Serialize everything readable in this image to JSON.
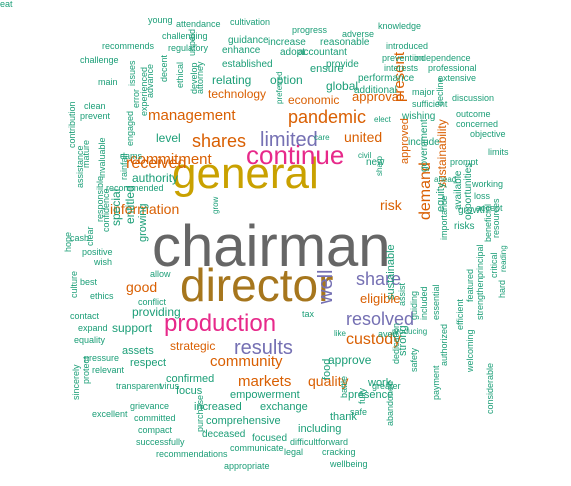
{
  "palette": {
    "gray": "#666666",
    "gold": "#c9a100",
    "bronze": "#a6761d",
    "magenta": "#e7298a",
    "purple": "#7570b3",
    "orange": "#d95f02",
    "teal": "#1b9e77"
  },
  "words": [
    {
      "text": "chairman",
      "color": "gray"
    },
    {
      "text": "general",
      "color": "gold"
    },
    {
      "text": "director",
      "color": "bronze"
    },
    {
      "text": "continue",
      "color": "magenta"
    },
    {
      "text": "production",
      "color": "magenta"
    },
    {
      "text": "limited",
      "color": "purple"
    },
    {
      "text": "results",
      "color": "purple"
    },
    {
      "text": "share",
      "color": "purple"
    },
    {
      "text": "resolved",
      "color": "purple"
    },
    {
      "text": "shares",
      "color": "orange"
    },
    {
      "text": "pandemic",
      "color": "orange"
    },
    {
      "text": "management",
      "color": "orange"
    },
    {
      "text": "received",
      "color": "orange"
    },
    {
      "text": "commitment",
      "color": "orange"
    },
    {
      "text": "custody",
      "color": "orange"
    },
    {
      "text": "community",
      "color": "orange"
    },
    {
      "text": "markets",
      "color": "orange"
    },
    {
      "text": "well",
      "color": "purple"
    },
    {
      "text": "quality",
      "color": "orange"
    },
    {
      "text": "information",
      "color": "orange"
    },
    {
      "text": "risk",
      "color": "orange"
    },
    {
      "text": "demand",
      "color": "orange"
    },
    {
      "text": "present",
      "color": "orange"
    },
    {
      "text": "good",
      "color": "orange"
    },
    {
      "text": "eligible",
      "color": "orange"
    },
    {
      "text": "united",
      "color": "orange"
    },
    {
      "text": "technology",
      "color": "orange"
    },
    {
      "text": "approval",
      "color": "orange"
    },
    {
      "text": "global",
      "color": "teal"
    },
    {
      "text": "economic",
      "color": "orange"
    },
    {
      "text": "approve",
      "color": "teal"
    },
    {
      "text": "sustainability",
      "color": "orange"
    },
    {
      "text": "authority",
      "color": "teal"
    },
    {
      "text": "level",
      "color": "teal"
    },
    {
      "text": "relating",
      "color": "teal"
    },
    {
      "text": "option",
      "color": "teal"
    },
    {
      "text": "entitled",
      "color": "teal"
    },
    {
      "text": "special",
      "color": "teal"
    },
    {
      "text": "growing",
      "color": "teal"
    },
    {
      "text": "providing",
      "color": "teal"
    },
    {
      "text": "support",
      "color": "teal"
    },
    {
      "text": "assets",
      "color": "teal"
    },
    {
      "text": "respect",
      "color": "teal"
    },
    {
      "text": "strategic",
      "color": "orange"
    },
    {
      "text": "confirmed",
      "color": "teal"
    },
    {
      "text": "focus",
      "color": "teal"
    },
    {
      "text": "empowerment",
      "color": "teal"
    },
    {
      "text": "increased",
      "color": "teal"
    },
    {
      "text": "exchange",
      "color": "teal"
    },
    {
      "text": "comprehensive",
      "color": "teal"
    },
    {
      "text": "presence",
      "color": "teal"
    },
    {
      "text": "work",
      "color": "teal"
    },
    {
      "text": "food",
      "color": "teal"
    },
    {
      "text": "thank",
      "color": "teal"
    },
    {
      "text": "including",
      "color": "teal"
    },
    {
      "text": "deceased",
      "color": "teal"
    },
    {
      "text": "focused",
      "color": "teal"
    },
    {
      "text": "strong",
      "color": "teal"
    },
    {
      "text": "sustainable",
      "color": "teal"
    },
    {
      "text": "government",
      "color": "teal"
    },
    {
      "text": "available",
      "color": "teal"
    },
    {
      "text": "equity",
      "color": "teal"
    },
    {
      "text": "approved",
      "color": "orange"
    },
    {
      "text": "include",
      "color": "teal"
    },
    {
      "text": "risks",
      "color": "teal"
    },
    {
      "text": "opportunities",
      "color": "teal"
    },
    {
      "text": "growth",
      "color": "teal"
    },
    {
      "text": "wishing",
      "color": "teal"
    },
    {
      "text": "new",
      "color": "teal"
    },
    {
      "text": "ensure",
      "color": "teal"
    },
    {
      "text": "provide",
      "color": "teal"
    },
    {
      "text": "performance",
      "color": "teal"
    },
    {
      "text": "additional",
      "color": "teal"
    },
    {
      "text": "established",
      "color": "teal"
    },
    {
      "text": "increase",
      "color": "teal"
    },
    {
      "text": "reasonable",
      "color": "teal"
    },
    {
      "text": "adopt",
      "color": "teal"
    },
    {
      "text": "accountant",
      "color": "teal"
    },
    {
      "text": "guidance",
      "color": "teal"
    },
    {
      "text": "enhance",
      "color": "teal"
    },
    {
      "text": "cultivation",
      "color": "teal"
    },
    {
      "text": "attendance",
      "color": "teal"
    },
    {
      "text": "challenging",
      "color": "teal"
    },
    {
      "text": "regulatory",
      "color": "teal"
    },
    {
      "text": "unpaid",
      "color": "teal"
    },
    {
      "text": "young",
      "color": "teal"
    },
    {
      "text": "progress",
      "color": "teal"
    },
    {
      "text": "adverse",
      "color": "teal"
    },
    {
      "text": "knowledge",
      "color": "teal"
    },
    {
      "text": "introduced",
      "color": "teal"
    },
    {
      "text": "independence",
      "color": "teal"
    },
    {
      "text": "prevention",
      "color": "teal"
    },
    {
      "text": "interests",
      "color": "teal"
    },
    {
      "text": "professional",
      "color": "teal"
    },
    {
      "text": "extensive",
      "color": "teal"
    },
    {
      "text": "major",
      "color": "teal"
    },
    {
      "text": "sufficient",
      "color": "teal"
    },
    {
      "text": "discussion",
      "color": "teal"
    },
    {
      "text": "outcome",
      "color": "teal"
    },
    {
      "text": "concerned",
      "color": "teal"
    },
    {
      "text": "objective",
      "color": "teal"
    },
    {
      "text": "decline",
      "color": "teal"
    },
    {
      "text": "elect",
      "color": "teal"
    },
    {
      "text": "limits",
      "color": "teal"
    },
    {
      "text": "prompt",
      "color": "teal"
    },
    {
      "text": "working",
      "color": "teal"
    },
    {
      "text": "loss",
      "color": "teal"
    },
    {
      "text": "accept",
      "color": "teal"
    },
    {
      "text": "ahead",
      "color": "teal"
    },
    {
      "text": "beneficial",
      "color": "teal"
    },
    {
      "text": "resources",
      "color": "teal"
    },
    {
      "text": "reading",
      "color": "teal"
    },
    {
      "text": "critical",
      "color": "teal"
    },
    {
      "text": "principal",
      "color": "teal"
    },
    {
      "text": "featured",
      "color": "teal"
    },
    {
      "text": "hard",
      "color": "teal"
    },
    {
      "text": "strengthen",
      "color": "teal"
    },
    {
      "text": "considerable",
      "color": "teal"
    },
    {
      "text": "welcoming",
      "color": "teal"
    },
    {
      "text": "efficient",
      "color": "teal"
    },
    {
      "text": "importance",
      "color": "teal"
    },
    {
      "text": "authorized",
      "color": "teal"
    },
    {
      "text": "payment",
      "color": "teal"
    },
    {
      "text": "essential",
      "color": "teal"
    },
    {
      "text": "included",
      "color": "teal"
    },
    {
      "text": "guiding",
      "color": "teal"
    },
    {
      "text": "safety",
      "color": "teal"
    },
    {
      "text": "abandoned",
      "color": "teal"
    },
    {
      "text": "dedication",
      "color": "teal"
    },
    {
      "text": "producing",
      "color": "teal"
    },
    {
      "text": "assist",
      "color": "teal"
    },
    {
      "text": "avert",
      "color": "teal"
    },
    {
      "text": "like",
      "color": "teal"
    },
    {
      "text": "greater",
      "color": "teal"
    },
    {
      "text": "fully",
      "color": "teal"
    },
    {
      "text": "safe",
      "color": "teal"
    },
    {
      "text": "battle",
      "color": "teal"
    },
    {
      "text": "forward",
      "color": "teal"
    },
    {
      "text": "difficult",
      "color": "teal"
    },
    {
      "text": "legal",
      "color": "teal"
    },
    {
      "text": "cracking",
      "color": "teal"
    },
    {
      "text": "wellbeing",
      "color": "teal"
    },
    {
      "text": "communicate",
      "color": "teal"
    },
    {
      "text": "appropriate",
      "color": "teal"
    },
    {
      "text": "recommendations",
      "color": "teal"
    },
    {
      "text": "successfully",
      "color": "teal"
    },
    {
      "text": "compact",
      "color": "teal"
    },
    {
      "text": "purchase",
      "color": "teal"
    },
    {
      "text": "committed",
      "color": "teal"
    },
    {
      "text": "excellent",
      "color": "teal"
    },
    {
      "text": "grievance",
      "color": "teal"
    },
    {
      "text": "transparent",
      "color": "teal"
    },
    {
      "text": "virus",
      "color": "teal"
    },
    {
      "text": "protect",
      "color": "teal"
    },
    {
      "text": "sincerely",
      "color": "teal"
    },
    {
      "text": "relevant",
      "color": "teal"
    },
    {
      "text": "pressure",
      "color": "teal"
    },
    {
      "text": "equality",
      "color": "teal"
    },
    {
      "text": "expand",
      "color": "teal"
    },
    {
      "text": "contact",
      "color": "teal"
    },
    {
      "text": "culture",
      "color": "teal"
    },
    {
      "text": "ethics",
      "color": "teal"
    },
    {
      "text": "conflict",
      "color": "teal"
    },
    {
      "text": "allow",
      "color": "teal"
    },
    {
      "text": "best",
      "color": "teal"
    },
    {
      "text": "wish",
      "color": "teal"
    },
    {
      "text": "positive",
      "color": "teal"
    },
    {
      "text": "cash",
      "color": "teal"
    },
    {
      "text": "clear",
      "color": "teal"
    },
    {
      "text": "hope",
      "color": "teal"
    },
    {
      "text": "assistance",
      "color": "teal"
    },
    {
      "text": "contribution",
      "color": "teal"
    },
    {
      "text": "mature",
      "color": "teal"
    },
    {
      "text": "invaluable",
      "color": "teal"
    },
    {
      "text": "responsible",
      "color": "teal"
    },
    {
      "text": "confidence",
      "color": "teal"
    },
    {
      "text": "recommended",
      "color": "teal"
    },
    {
      "text": "rainfall",
      "color": "teal"
    },
    {
      "text": "dams",
      "color": "teal"
    },
    {
      "text": "clean",
      "color": "teal"
    },
    {
      "text": "prevent",
      "color": "teal"
    },
    {
      "text": "engaged",
      "color": "teal"
    },
    {
      "text": "experienced",
      "color": "teal"
    },
    {
      "text": "error",
      "color": "teal"
    },
    {
      "text": "issues",
      "color": "teal"
    },
    {
      "text": "advance",
      "color": "teal"
    },
    {
      "text": "decent",
      "color": "teal"
    },
    {
      "text": "ethical",
      "color": "teal"
    },
    {
      "text": "develop",
      "color": "teal"
    },
    {
      "text": "attorney",
      "color": "teal"
    },
    {
      "text": "main",
      "color": "teal"
    },
    {
      "text": "challenge",
      "color": "teal"
    },
    {
      "text": "recommends",
      "color": "teal"
    },
    {
      "text": "preferred",
      "color": "teal"
    },
    {
      "text": "care",
      "color": "teal"
    },
    {
      "text": "civil",
      "color": "teal"
    },
    {
      "text": "sharp",
      "color": "teal"
    },
    {
      "text": "tax",
      "color": "teal"
    },
    {
      "text": "grow",
      "color": "teal"
    },
    {
      "text": "eat",
      "color": "teal"
    }
  ]
}
